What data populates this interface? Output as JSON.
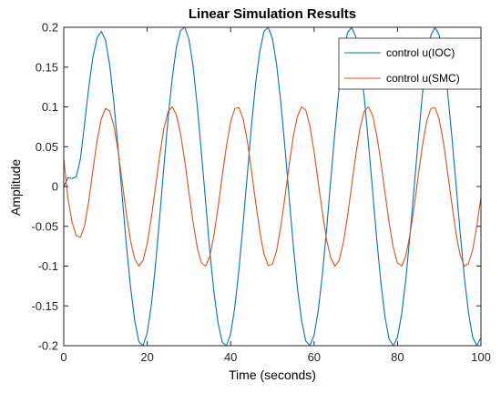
{
  "chart_data": {
    "type": "line",
    "title": "Linear Simulation Results",
    "xlabel": "Time (seconds)",
    "ylabel": "Amplitude",
    "xlim": [
      0,
      100
    ],
    "ylim": [
      -0.2,
      0.2
    ],
    "x_ticks": [
      0,
      20,
      40,
      60,
      80,
      100
    ],
    "x_tick_labels": [
      "0",
      "20",
      "40",
      "60",
      "80",
      "100"
    ],
    "y_ticks": [
      -0.2,
      -0.15,
      -0.1,
      -0.05,
      0,
      0.05,
      0.1,
      0.15,
      0.2
    ],
    "y_tick_labels": [
      "-0.2",
      "-0.15",
      "-0.1",
      "-0.05",
      "0",
      "0.05",
      "0.1",
      "0.15",
      "0.2"
    ],
    "grid": false,
    "legend_position": "top-right",
    "series": [
      {
        "name": "control u(IOC)",
        "color": "#0072BD",
        "x": [
          0,
          1,
          2,
          3,
          4,
          5,
          6,
          7,
          8,
          9,
          10,
          11,
          12,
          13,
          14,
          15,
          16,
          17,
          18,
          19,
          20,
          21,
          22,
          23,
          24,
          25,
          26,
          27,
          28,
          29,
          30,
          31,
          32,
          33,
          34,
          35,
          36,
          37,
          38,
          39,
          40,
          41,
          42,
          43,
          44,
          45,
          46,
          47,
          48,
          49,
          50,
          51,
          52,
          53,
          54,
          55,
          56,
          57,
          58,
          59,
          60,
          61,
          62,
          63,
          64,
          65,
          66,
          67,
          68,
          69,
          70,
          71,
          72,
          73,
          74,
          75,
          76,
          77,
          78,
          79,
          80,
          81,
          82,
          83,
          84,
          85,
          86,
          87,
          88,
          89,
          90,
          91,
          92,
          93,
          94,
          95,
          96,
          97,
          98,
          99,
          100
        ],
        "y": [
          0.0,
          0.011,
          0.01,
          0.012,
          0.035,
          0.079,
          0.125,
          0.163,
          0.187,
          0.195,
          0.184,
          0.153,
          0.106,
          0.049,
          -0.012,
          -0.073,
          -0.126,
          -0.168,
          -0.195,
          -0.2,
          -0.184,
          -0.149,
          -0.098,
          -0.038,
          0.025,
          0.085,
          0.136,
          0.175,
          0.196,
          0.2,
          0.185,
          0.151,
          0.101,
          0.042,
          -0.019,
          -0.081,
          -0.133,
          -0.172,
          -0.196,
          -0.2,
          -0.185,
          -0.152,
          -0.104,
          -0.046,
          0.015,
          0.077,
          0.13,
          0.17,
          0.195,
          0.2,
          0.186,
          0.154,
          0.107,
          0.05,
          -0.012,
          -0.073,
          -0.127,
          -0.168,
          -0.194,
          -0.2,
          -0.187,
          -0.156,
          -0.11,
          -0.054,
          0.008,
          0.069,
          0.124,
          0.166,
          0.193,
          0.2,
          0.188,
          0.158,
          0.113,
          0.057,
          -0.004,
          -0.065,
          -0.12,
          -0.164,
          -0.192,
          -0.2,
          -0.189,
          -0.16,
          -0.116,
          -0.061,
          0.0,
          0.061,
          0.117,
          0.161,
          0.19,
          0.2,
          0.19,
          0.162,
          0.119,
          0.064,
          0.004,
          -0.057,
          -0.113,
          -0.158,
          -0.189,
          -0.2,
          -0.19
        ]
      },
      {
        "name": "control u(SMC)",
        "color": "#D95319",
        "x": [
          0,
          1,
          2,
          3,
          4,
          5,
          6,
          7,
          8,
          9,
          10,
          11,
          12,
          13,
          14,
          15,
          16,
          17,
          18,
          19,
          20,
          21,
          22,
          23,
          24,
          25,
          26,
          27,
          28,
          29,
          30,
          31,
          32,
          33,
          34,
          35,
          36,
          37,
          38,
          39,
          40,
          41,
          42,
          43,
          44,
          45,
          46,
          47,
          48,
          49,
          50,
          51,
          52,
          53,
          54,
          55,
          56,
          57,
          58,
          59,
          60,
          61,
          62,
          63,
          64,
          65,
          66,
          67,
          68,
          69,
          70,
          71,
          72,
          73,
          74,
          75,
          76,
          77,
          78,
          79,
          80,
          81,
          82,
          83,
          84,
          85,
          86,
          87,
          88,
          89,
          90,
          91,
          92,
          93,
          94,
          95,
          96,
          97,
          98,
          99,
          100
        ],
        "y": [
          0.035,
          -0.015,
          -0.045,
          -0.062,
          -0.064,
          -0.049,
          -0.018,
          0.021,
          0.058,
          0.085,
          0.098,
          0.095,
          0.077,
          0.045,
          0.006,
          -0.034,
          -0.068,
          -0.091,
          -0.1,
          -0.093,
          -0.072,
          -0.039,
          0.0,
          0.039,
          0.073,
          0.094,
          0.1,
          0.09,
          0.066,
          0.032,
          -0.007,
          -0.045,
          -0.077,
          -0.096,
          -0.1,
          -0.088,
          -0.061,
          -0.026,
          0.014,
          0.051,
          0.081,
          0.098,
          0.099,
          0.085,
          0.057,
          0.02,
          -0.02,
          -0.057,
          -0.085,
          -0.099,
          -0.098,
          -0.081,
          -0.051,
          -0.014,
          0.026,
          0.062,
          0.088,
          0.1,
          0.096,
          0.076,
          0.044,
          0.005,
          -0.033,
          -0.067,
          -0.09,
          -0.1,
          -0.093,
          -0.071,
          -0.038,
          0.001,
          0.04,
          0.073,
          0.094,
          0.1,
          0.09,
          0.065,
          0.031,
          -0.008,
          -0.046,
          -0.077,
          -0.096,
          -0.1,
          -0.087,
          -0.06,
          -0.025,
          0.015,
          0.052,
          0.082,
          0.098,
          0.099,
          0.084,
          0.056,
          0.018,
          -0.021,
          -0.058,
          -0.086,
          -0.1,
          -0.097,
          -0.08,
          -0.05,
          -0.013
        ]
      }
    ]
  }
}
